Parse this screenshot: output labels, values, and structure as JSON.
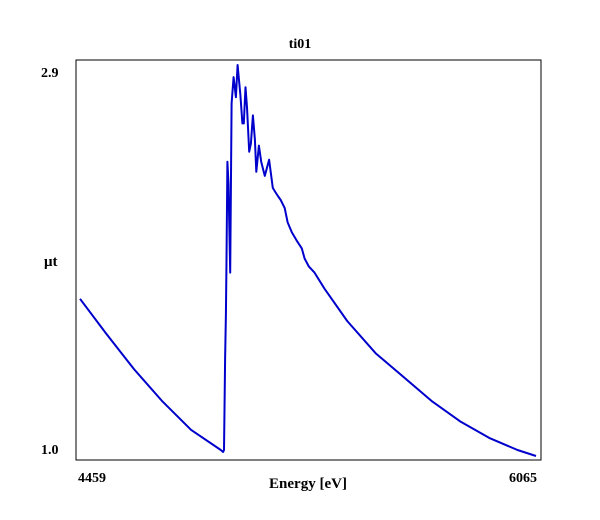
{
  "chart_data": {
    "type": "line",
    "title": "ti01",
    "xlabel": "Energy [eV]",
    "ylabel": "μt",
    "xlim": [
      4459,
      6065
    ],
    "ylim": [
      1.0,
      2.9
    ],
    "x_tick_labels": [
      "4459",
      "6065"
    ],
    "y_tick_labels": [
      "1.0",
      "2.9"
    ],
    "grid": false,
    "colors": {
      "series": "#0000cc",
      "frame": "#000000"
    },
    "series": [
      {
        "x": [
          4459,
          4550,
          4650,
          4750,
          4850,
          4955,
          4963,
          4966,
          4968,
          4970,
          4973,
          4975,
          4978,
          4982,
          4988,
          4993,
          5000,
          5008,
          5014,
          5024,
          5031,
          5036,
          5042,
          5047,
          5055,
          5061,
          5068,
          5075,
          5080,
          5089,
          5097,
          5110,
          5125,
          5138,
          5147,
          5156,
          5166,
          5180,
          5190,
          5205,
          5222,
          5240,
          5250,
          5265,
          5285,
          5320,
          5400,
          5500,
          5600,
          5700,
          5800,
          5900,
          6000,
          6065
        ],
        "y": [
          1.75,
          1.58,
          1.4,
          1.24,
          1.1,
          1.0,
          0.99,
          1.0,
          1.2,
          1.45,
          1.67,
          1.94,
          2.43,
          2.32,
          1.88,
          2.72,
          2.85,
          2.75,
          2.91,
          2.76,
          2.62,
          2.62,
          2.8,
          2.7,
          2.48,
          2.52,
          2.66,
          2.54,
          2.38,
          2.51,
          2.43,
          2.36,
          2.44,
          2.3,
          2.28,
          2.26,
          2.24,
          2.2,
          2.13,
          2.08,
          2.04,
          2.0,
          1.95,
          1.91,
          1.88,
          1.8,
          1.64,
          1.48,
          1.36,
          1.24,
          1.14,
          1.06,
          1.0,
          0.97
        ]
      }
    ]
  }
}
